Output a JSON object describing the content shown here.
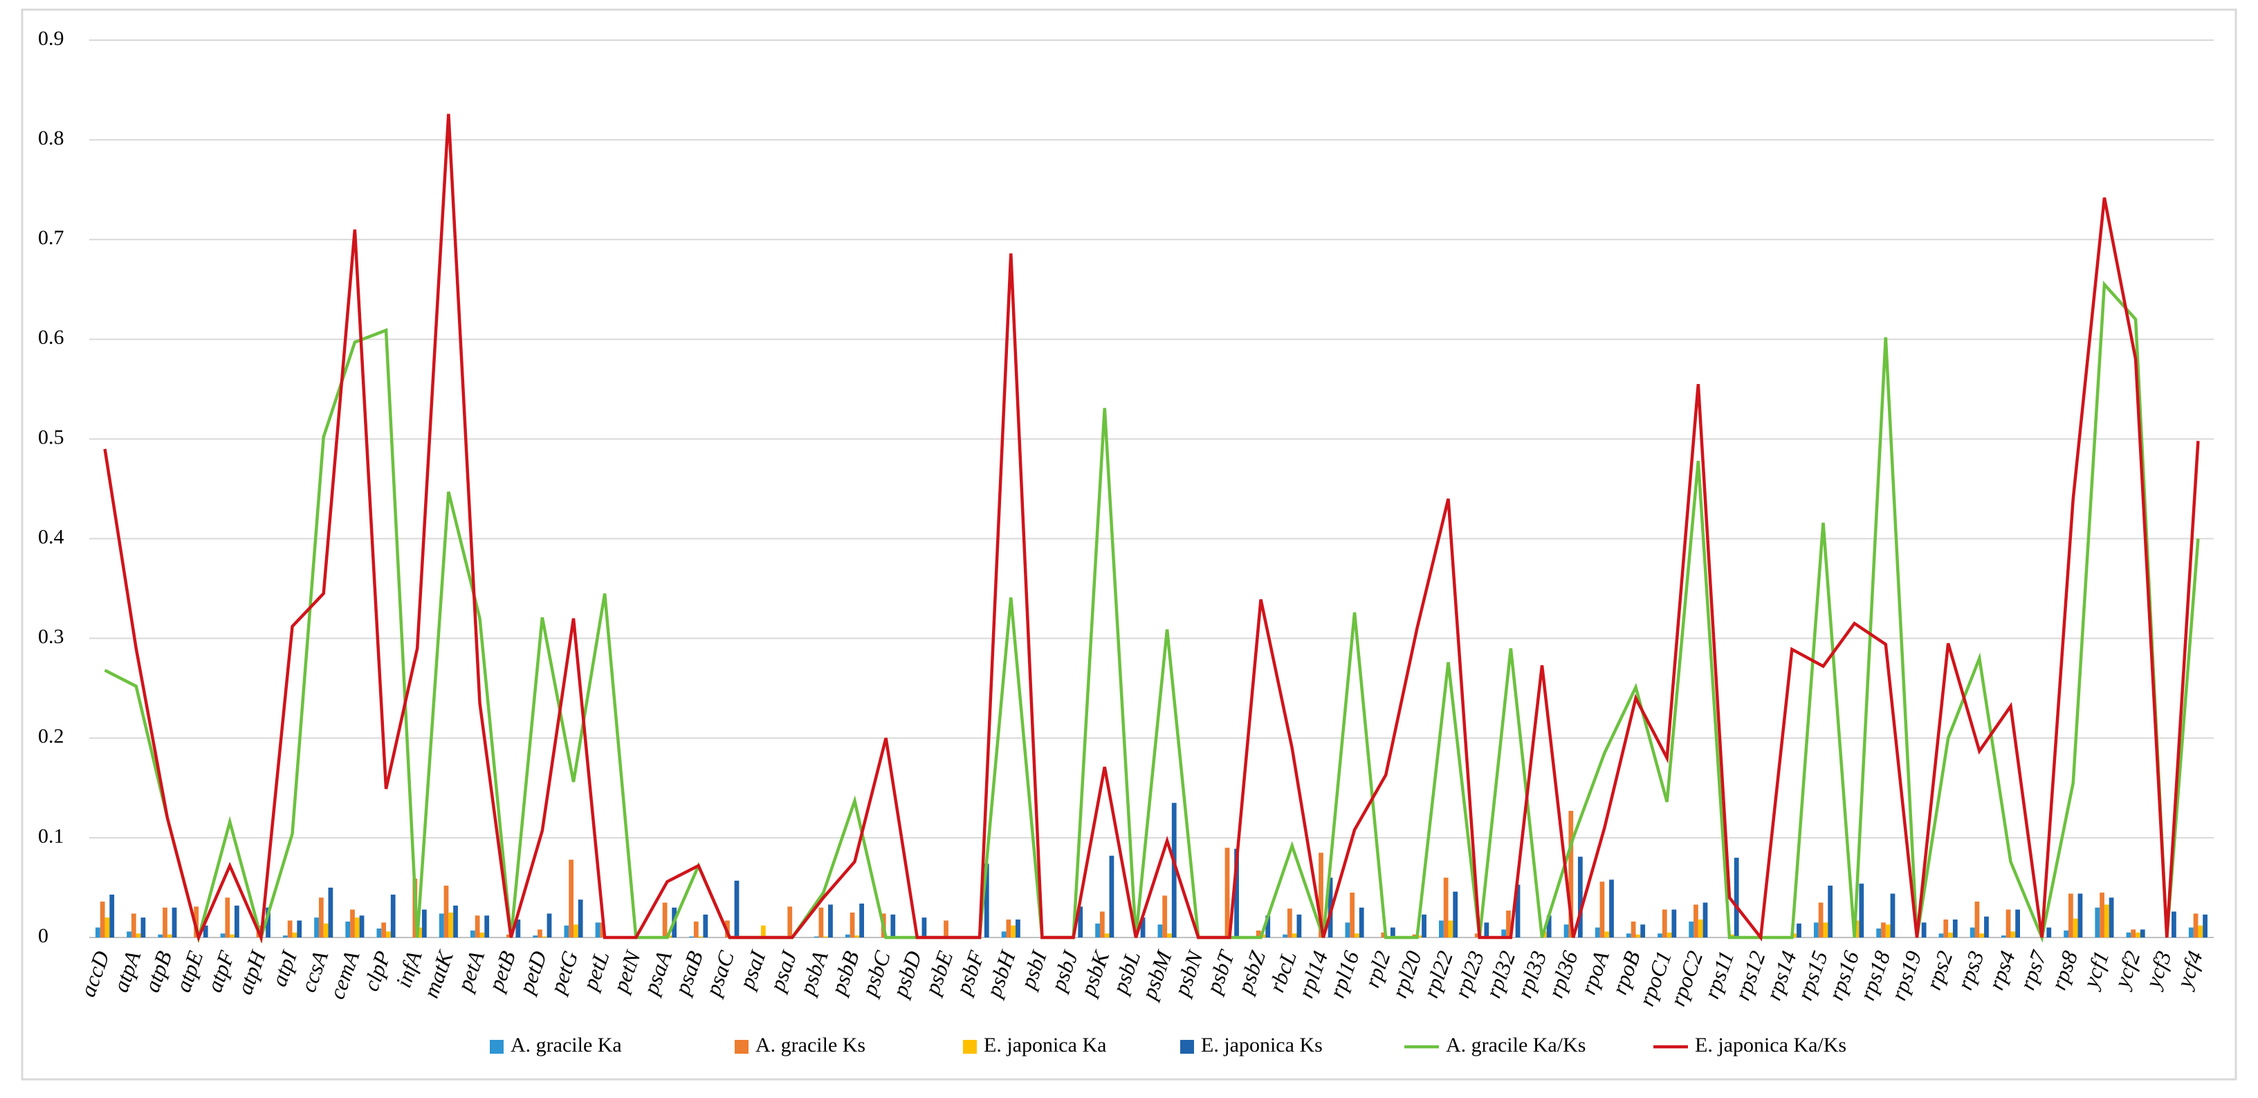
{
  "chart_data": {
    "type": "combo",
    "categories": [
      "accD",
      "atpA",
      "atpB",
      "atpE",
      "atpF",
      "atpH",
      "atpI",
      "ccsA",
      "cemA",
      "clpP",
      "infA",
      "matK",
      "petA",
      "petB",
      "petD",
      "petG",
      "petL",
      "petN",
      "psaA",
      "psaB",
      "psaC",
      "psaI",
      "psaJ",
      "psbA",
      "psbB",
      "psbC",
      "psbD",
      "psbE",
      "psbF",
      "psbH",
      "psbI",
      "psbJ",
      "psbK",
      "psbL",
      "psbM",
      "psbN",
      "psbT",
      "psbZ",
      "rbcL",
      "rpl14",
      "rpl16",
      "rpl2",
      "rpl20",
      "rpl22",
      "rpl23",
      "rpl32",
      "rpl33",
      "rpl36",
      "rpoA",
      "rpoB",
      "rpoC1",
      "rpoC2",
      "rps11",
      "rps12",
      "rps14",
      "rps15",
      "rps16",
      "rps18",
      "rps19",
      "rps2",
      "rps3",
      "rps4",
      "rps7",
      "rps8",
      "ycf1",
      "ycf2",
      "ycf3",
      "ycf4"
    ],
    "series": [
      {
        "name": "A. gracile Ka",
        "type": "bar",
        "color": "#2e95d3",
        "values": [
          0.01,
          0.006,
          0.003,
          0,
          0.004,
          0,
          0.002,
          0.02,
          0.016,
          0.009,
          0,
          0.024,
          0.007,
          0,
          0.002,
          0.012,
          0.015,
          0,
          0,
          0.001,
          0,
          0,
          0,
          0.001,
          0.003,
          0,
          0,
          0,
          0,
          0.006,
          0,
          0,
          0.014,
          0,
          0.013,
          0,
          0,
          0,
          0.003,
          0,
          0.015,
          0,
          0,
          0.017,
          0,
          0.008,
          0,
          0.013,
          0.01,
          0.004,
          0.004,
          0.016,
          0,
          0,
          0,
          0.015,
          0,
          0.009,
          0,
          0.004,
          0.01,
          0.002,
          0,
          0.007,
          0.03,
          0.005,
          0,
          0.01
        ]
      },
      {
        "name": "A. gracile Ks",
        "type": "bar",
        "color": "#ed7d31",
        "values": [
          0.036,
          0.024,
          0.03,
          0.031,
          0.04,
          0.012,
          0.017,
          0.04,
          0.028,
          0.015,
          0.059,
          0.052,
          0.022,
          0.003,
          0.008,
          0.078,
          0.015,
          0,
          0.035,
          0.016,
          0.017,
          0,
          0.031,
          0.03,
          0.025,
          0.024,
          0,
          0.017,
          0,
          0.018,
          0,
          0,
          0.026,
          0,
          0.042,
          0,
          0.09,
          0.007,
          0.029,
          0.085,
          0.045,
          0.005,
          0.003,
          0.06,
          0.004,
          0.027,
          0,
          0.127,
          0.056,
          0.016,
          0.028,
          0.033,
          0,
          0,
          0,
          0.035,
          0,
          0.015,
          0,
          0.018,
          0.036,
          0.028,
          0,
          0.044,
          0.045,
          0.008,
          0,
          0.024
        ]
      },
      {
        "name": "E. japonica Ka",
        "type": "bar",
        "color": "#ffc000",
        "values": [
          0.02,
          0.004,
          0.003,
          0,
          0.003,
          0,
          0.005,
          0.014,
          0.02,
          0.006,
          0.01,
          0.025,
          0.005,
          0,
          0.001,
          0.013,
          0,
          0,
          0.002,
          0.001,
          0,
          0.012,
          0,
          0.001,
          0.002,
          0,
          0,
          0,
          0,
          0.012,
          0,
          0,
          0.004,
          0,
          0.004,
          0,
          0,
          0.003,
          0.004,
          0,
          0.004,
          0.001,
          0.002,
          0.017,
          0,
          0,
          0.006,
          0,
          0.006,
          0.003,
          0.005,
          0.018,
          0.003,
          0,
          0.004,
          0.015,
          0.017,
          0.013,
          0,
          0.005,
          0.004,
          0.006,
          0,
          0.019,
          0.033,
          0.005,
          0,
          0.012
        ]
      },
      {
        "name": "E. japonica Ks",
        "type": "bar",
        "color": "#1f63ad",
        "values": [
          0.043,
          0.02,
          0.03,
          0.012,
          0.032,
          0.03,
          0.017,
          0.05,
          0.022,
          0.043,
          0.028,
          0.032,
          0.022,
          0.018,
          0.024,
          0.038,
          0,
          0,
          0.03,
          0.023,
          0.057,
          0,
          0,
          0.033,
          0.034,
          0.023,
          0.02,
          0,
          0.074,
          0.018,
          0,
          0.031,
          0.082,
          0.02,
          0.135,
          0,
          0.089,
          0.022,
          0.023,
          0.06,
          0.03,
          0.01,
          0.023,
          0.046,
          0.015,
          0.053,
          0.022,
          0.081,
          0.058,
          0.013,
          0.028,
          0.035,
          0.08,
          0,
          0.014,
          0.052,
          0.054,
          0.044,
          0.015,
          0.018,
          0.021,
          0.028,
          0.01,
          0.044,
          0.04,
          0.008,
          0.026,
          0.023
        ]
      },
      {
        "name": "A. gracile Ka/Ks",
        "type": "line",
        "color": "#6cc13f",
        "values": [
          0.268,
          0.252,
          0.12,
          0,
          0.116,
          0,
          0.104,
          0.502,
          0.597,
          0.609,
          0,
          0.447,
          0.32,
          0,
          0.321,
          0.156,
          0.345,
          0,
          0,
          0.072,
          0,
          0,
          0,
          0.045,
          0.137,
          0,
          0,
          0,
          0,
          0.341,
          0,
          0,
          0.531,
          0,
          0.309,
          0,
          0,
          0,
          0.092,
          0,
          0.326,
          0,
          0,
          0.276,
          0,
          0.29,
          0,
          0.1,
          0.185,
          0.251,
          0.136,
          0.478,
          0,
          0,
          0,
          0.416,
          0,
          0.602,
          0,
          0.2,
          0.28,
          0.076,
          0,
          0.155,
          0.655,
          0.62,
          0,
          0.4
        ]
      },
      {
        "name": "E. japonica Ka/Ks",
        "type": "line",
        "color": "#d0141b",
        "values": [
          0.49,
          0.29,
          0.12,
          0,
          0.072,
          0,
          0.312,
          0.345,
          0.71,
          0.149,
          0.29,
          0.826,
          0.235,
          0,
          0.107,
          0.32,
          0,
          0,
          0.056,
          0.072,
          0,
          0,
          0,
          0.04,
          0.076,
          0.2,
          0,
          0,
          0,
          0.686,
          0,
          0,
          0.171,
          0,
          0.097,
          0,
          0,
          0.339,
          0.19,
          0,
          0.108,
          0.163,
          0.31,
          0.44,
          0,
          0,
          0.273,
          0,
          0.11,
          0.24,
          0.18,
          0.555,
          0.04,
          0,
          0.289,
          0.272,
          0.315,
          0.294,
          0,
          0.295,
          0.187,
          0.232,
          0,
          0.44,
          0.742,
          0.58,
          0,
          0.498
        ]
      }
    ],
    "ylim": [
      0,
      0.9
    ],
    "yticks": [
      0,
      0.1,
      0.2,
      0.3,
      0.4,
      0.5,
      0.6,
      0.7,
      0.8,
      0.9
    ],
    "grid": true
  }
}
